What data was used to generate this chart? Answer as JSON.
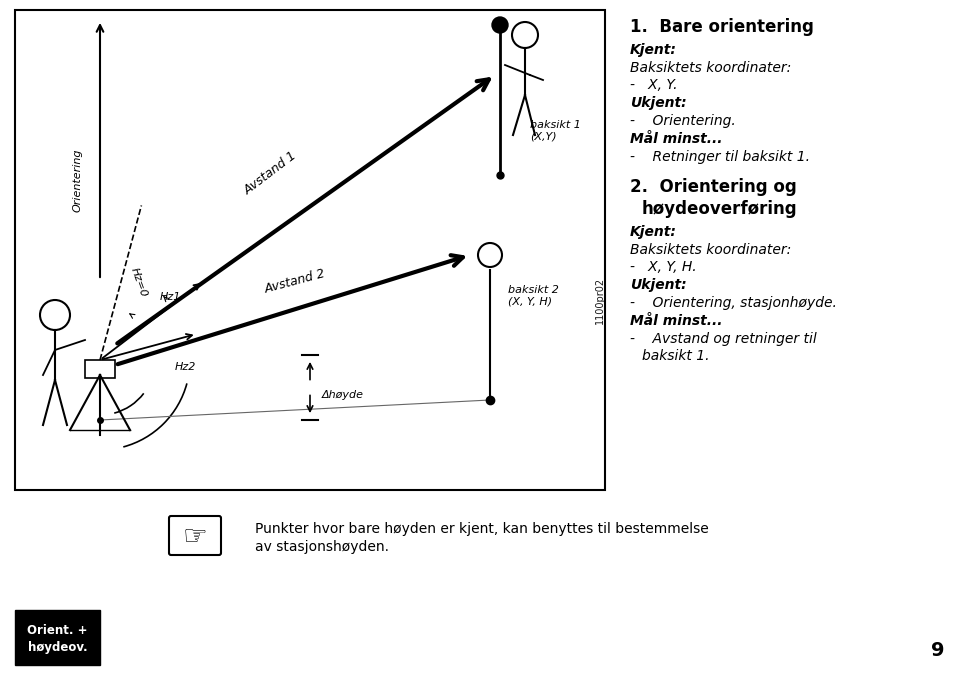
{
  "bg_color": "#ffffff",
  "section1_title": "1.  Bare orientering",
  "section1_bold1": "Kjent:",
  "section1_line1": "Baksiktets koordinater:",
  "section1_line2": "-   X, Y.",
  "section1_bold2": "Ukjent:",
  "section1_line3": "-    Orientering.",
  "section1_bold3": "Mål minst...",
  "section1_line4": "-    Retninger til baksikt 1.",
  "section2_title_1": "2.  Orientering og",
  "section2_title_2": "     høydeoverføring",
  "section2_bold1": "Kjent:",
  "section2_line1": "Baksiktets koordinater:",
  "section2_line2": "-   X, Y, H.",
  "section2_bold2": "Ukjent:",
  "section2_line3": "-    Orientering, stasjonhøyde.",
  "section2_bold3": "Mål minst...",
  "section2_line4a": "-    Avstand og retninger til",
  "section2_line4b": "      baksikt 1.",
  "bottom_text1": "Punkter hvor bare høyden er kjent, kan benyttes til bestemmelse",
  "bottom_text2": "av stasjonshøyden.",
  "footer_box_text": "Orient. +\nhøydeov.",
  "page_number": "9",
  "watermark": "1100pr02",
  "label_baksikt1": "baksikt 1\n(X,Y)",
  "label_baksikt2": "baksikt 2\n(X, Y, H)",
  "label_avstand1": "Avstand 1",
  "label_avstand2": "Avstand 2",
  "label_hz0": "Hz=0",
  "label_hz1": "Hz1",
  "label_hz2": "Hz2",
  "label_hoyde": "Δhøyde",
  "label_orientering": "Orientering"
}
